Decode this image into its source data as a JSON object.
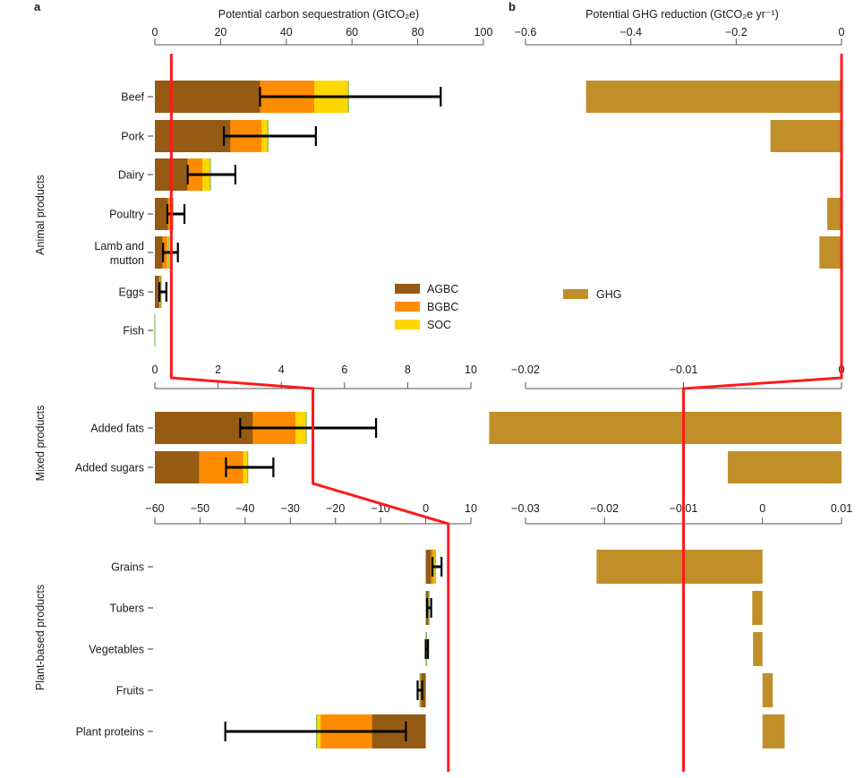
{
  "chart_data": [
    {
      "panel": "a",
      "type": "bar",
      "stacked": true,
      "orientation": "horizontal",
      "title": "Potential carbon sequestration (GtCO₂e)",
      "panel_label": "a",
      "series": [
        {
          "name": "AGBC",
          "color": "#955A14"
        },
        {
          "name": "BGBC",
          "color": "#FF8C00"
        },
        {
          "name": "SOC",
          "color": "#FFD700"
        }
      ],
      "legend": {
        "position": "right",
        "entries": [
          "AGBC",
          "BGBC",
          "SOC"
        ]
      },
      "groups": [
        {
          "name": "Animal products",
          "axis": {
            "range": [
              0,
              100
            ],
            "ticks": [
              0,
              20,
              40,
              60,
              80,
              100
            ],
            "tick_labels": [
              "0",
              "20",
              "40",
              "60",
              "80",
              "100"
            ]
          },
          "categories": [
            "Beef",
            "Pork",
            "Dairy",
            "Poultry",
            "Lamb and mutton",
            "Eggs",
            "Fish"
          ],
          "values": {
            "AGBC": [
              32,
              23,
              10,
              4,
              2.3,
              1.3,
              0.1
            ],
            "BGBC": [
              16.5,
              9.5,
              4.5,
              1.3,
              1.5,
              0.5,
              0
            ],
            "SOC": [
              10.5,
              2,
              2.5,
              0.3,
              0.6,
              0.2,
              0
            ]
          },
          "error_low": [
            32,
            21,
            10,
            3.8,
            2.5,
            1.4,
            0
          ],
          "error_high": [
            87,
            49,
            24.5,
            9,
            7,
            3.5,
            0
          ]
        },
        {
          "name": "Mixed products",
          "axis": {
            "range": [
              0,
              10
            ],
            "ticks": [
              0,
              2,
              4,
              6,
              8,
              10
            ],
            "tick_labels": [
              "0",
              "2",
              "4",
              "6",
              "8",
              "10"
            ]
          },
          "categories": [
            "Added fats",
            "Added sugars"
          ],
          "values": {
            "AGBC": [
              3.1,
              1.4
            ],
            "BGBC": [
              1.35,
              1.4
            ],
            "SOC": [
              0.35,
              0.15
            ]
          },
          "error_low": [
            2.7,
            2.25
          ],
          "error_high": [
            7.0,
            3.75
          ]
        },
        {
          "name": "Plant-based products",
          "axis": {
            "range": [
              -60,
              10
            ],
            "ticks": [
              -60,
              -50,
              -40,
              -30,
              -20,
              -10,
              0,
              10
            ],
            "tick_labels": [
              "−60",
              "−50",
              "−40",
              "−30",
              "−20",
              "−10",
              "0",
              "10"
            ]
          },
          "categories": [
            "Grains",
            "Tubers",
            "Vegetables",
            "Fruits",
            "Plant proteins"
          ],
          "values": {
            "AGBC": [
              1.2,
              0.6,
              0.15,
              -1.0,
              -11.9
            ],
            "BGBC": [
              0.6,
              0.15,
              0.05,
              -0.3,
              -11.4
            ],
            "SOC": [
              0.4,
              0.05,
              0.05,
              -0.1,
              -1.0
            ]
          },
          "error_low": [
            1.5,
            0.3,
            0.0,
            -1.8,
            -44.4
          ],
          "error_high": [
            3.5,
            1.2,
            0.5,
            -0.8,
            -4.4
          ]
        }
      ],
      "reference_line": {
        "color": "#FF1A1A",
        "values": [
          5,
          5,
          5
        ]
      }
    },
    {
      "panel": "b",
      "type": "bar",
      "orientation": "horizontal",
      "title": "Potential GHG reduction (GtCO₂e yr⁻¹)",
      "panel_label": "b",
      "series": [
        {
          "name": "GHG",
          "color": "#C18F2A"
        }
      ],
      "legend": {
        "position": "left",
        "entries": [
          "GHG"
        ]
      },
      "groups": [
        {
          "name": "Animal products",
          "axis": {
            "range": [
              -0.6,
              0
            ],
            "ticks": [
              -0.6,
              -0.4,
              -0.2,
              0
            ],
            "tick_labels": [
              "−0.6",
              "−0.4",
              "−0.2",
              "0"
            ]
          },
          "categories": [
            "Beef",
            "Pork",
            "Dairy",
            "Poultry",
            "Lamb and mutton",
            "Eggs",
            "Fish"
          ],
          "values": [
            -0.485,
            -0.135,
            -0.003,
            -0.027,
            -0.042,
            -0.002,
            -0.001
          ]
        },
        {
          "name": "Mixed products",
          "axis": {
            "range": [
              -0.02,
              0
            ],
            "ticks": [
              -0.02,
              -0.01,
              0
            ],
            "tick_labels": [
              "−0.02",
              "−0.01",
              "0"
            ]
          },
          "categories": [
            "Added fats",
            "Added sugars"
          ],
          "values": [
            -0.0223,
            -0.0072
          ]
        },
        {
          "name": "Plant-based products",
          "axis": {
            "range": [
              -0.03,
              0.01
            ],
            "ticks": [
              -0.03,
              -0.02,
              -0.01,
              0,
              0.01
            ],
            "tick_labels": [
              "−0.03",
              "−0.02",
              "−0.01",
              "0",
              "0.01"
            ]
          },
          "categories": [
            "Grains",
            "Tubers",
            "Vegetables",
            "Fruits",
            "Plant proteins"
          ],
          "values": [
            -0.021,
            -0.0013,
            -0.0012,
            0.0013,
            0.0028
          ]
        }
      ],
      "reference_line": {
        "color": "#FF1A1A",
        "values": [
          0,
          -0.01,
          -0.01
        ]
      }
    }
  ],
  "labels": {
    "panel_a": "a",
    "panel_b": "b",
    "title_a": "Potential carbon sequestration (GtCO₂e)",
    "title_b": "Potential GHG reduction (GtCO₂e yr⁻¹)",
    "group_animal": "Animal products",
    "group_mixed": "Mixed products",
    "group_plant": "Plant-based products"
  }
}
